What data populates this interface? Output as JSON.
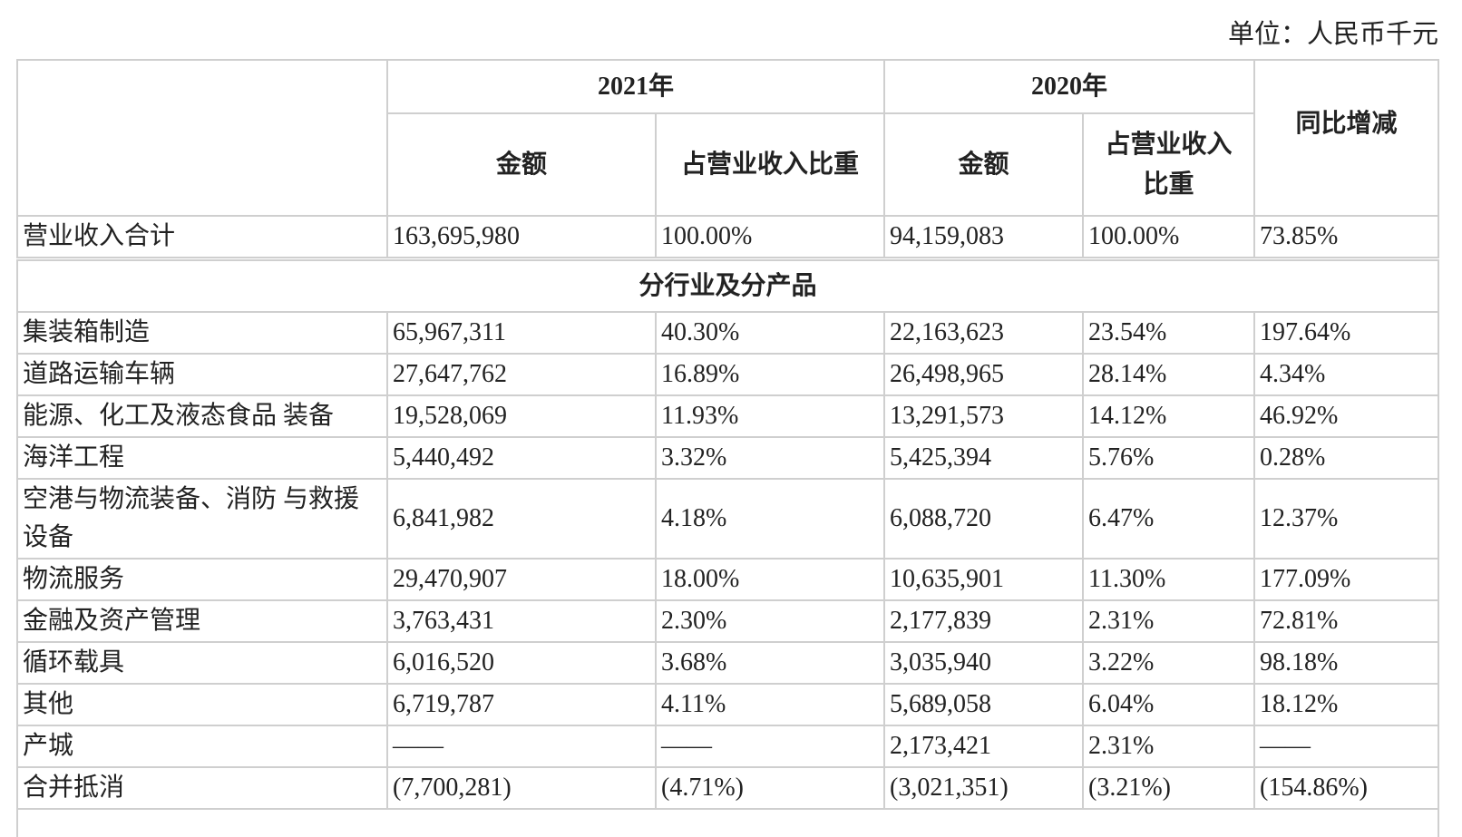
{
  "unit_label": "单位：人民币千元",
  "header": {
    "year_2021": "2021年",
    "year_2020": "2020年",
    "amount": "金额",
    "ratio_2021": "占营业收入比重",
    "ratio_2020": "占营业收入比重",
    "yoy": "同比增减"
  },
  "total": {
    "label": "营业收入合计",
    "cells": [
      "163,695,980",
      "100.00%",
      "94,159,083",
      "100.00%",
      "73.85%"
    ]
  },
  "section_title": "分行业及分产品",
  "rows": [
    {
      "label": "集装箱制造",
      "cells": [
        "65,967,311",
        "40.30%",
        "22,163,623",
        "23.54%",
        "197.64%"
      ]
    },
    {
      "label": "道路运输车辆",
      "cells": [
        "27,647,762",
        "16.89%",
        "26,498,965",
        "28.14%",
        "4.34%"
      ]
    },
    {
      "label": "能源、化工及液态食品 装备",
      "cells": [
        "19,528,069",
        "11.93%",
        "13,291,573",
        "14.12%",
        "46.92%"
      ]
    },
    {
      "label": "海洋工程",
      "cells": [
        "5,440,492",
        "3.32%",
        "5,425,394",
        "5.76%",
        "0.28%"
      ]
    },
    {
      "label": "空港与物流装备、消防 与救援设备",
      "cells": [
        "6,841,982",
        "4.18%",
        "6,088,720",
        "6.47%",
        "12.37%"
      ]
    },
    {
      "label": "物流服务",
      "cells": [
        "29,470,907",
        "18.00%",
        "10,635,901",
        "11.30%",
        "177.09%"
      ]
    },
    {
      "label": "金融及资产管理",
      "cells": [
        "3,763,431",
        "2.30%",
        "2,177,839",
        "2.31%",
        "72.81%"
      ]
    },
    {
      "label": "循环载具",
      "cells": [
        "6,016,520",
        "3.68%",
        "3,035,940",
        "3.22%",
        "98.18%"
      ]
    },
    {
      "label": "其他",
      "cells": [
        "6,719,787",
        "4.11%",
        "5,689,058",
        "6.04%",
        "18.12%"
      ]
    },
    {
      "label": "产城",
      "cells": [
        "——",
        "——",
        "2,173,421",
        "2.31%",
        "——"
      ]
    },
    {
      "label": "合并抵消",
      "cells": [
        "(7,700,281)",
        "(4.71%)",
        "(3,021,351)",
        "(3.21%)",
        "(154.86%)"
      ]
    }
  ]
}
